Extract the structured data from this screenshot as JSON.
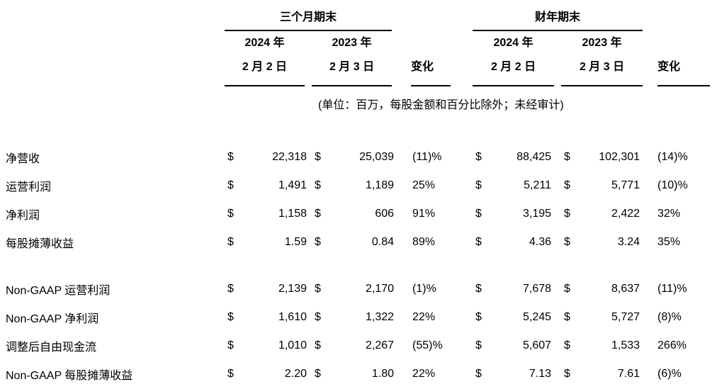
{
  "colors": {
    "background": "#ffffff",
    "text": "#000000",
    "rule": "#000000"
  },
  "table": {
    "currency_symbol": "$",
    "group_headers": [
      {
        "label": "三个月期末"
      },
      {
        "label": "财年期末"
      }
    ],
    "col_headers": {
      "q_2024_year": "2024 年",
      "q_2024_date": "2 月 2 日",
      "q_2023_year": "2023 年",
      "q_2023_date": "2 月 3 日",
      "fy_2024_year": "2024 年",
      "fy_2024_date": "2 月 2 日",
      "fy_2023_year": "2023 年",
      "fy_2023_date": "2 月 3 日",
      "change": "变化"
    },
    "note": "(单位：百万，每股金额和百分比除外；未经审计)",
    "rows": [
      {
        "section": 1,
        "label": "净营收",
        "q1": "22,318",
        "q2": "25,039",
        "qchg": "(11)%",
        "f1": "88,425",
        "f2": "102,301",
        "fchg": "(14)%"
      },
      {
        "section": 1,
        "label": "运营利润",
        "q1": "1,491",
        "q2": "1,189",
        "qchg": "25%",
        "f1": "5,211",
        "f2": "5,771",
        "fchg": "(10)%"
      },
      {
        "section": 1,
        "label": "净利润",
        "q1": "1,158",
        "q2": "606",
        "qchg": "91%",
        "f1": "3,195",
        "f2": "2,422",
        "fchg": "32%"
      },
      {
        "section": 1,
        "label": "每股摊薄收益",
        "q1": "1.59",
        "q2": "0.84",
        "qchg": "89%",
        "f1": "4.36",
        "f2": "3.24",
        "fchg": "35%"
      },
      {
        "section": 2,
        "label": "Non-GAAP 运营利润",
        "q1": "2,139",
        "q2": "2,170",
        "qchg": "(1)%",
        "f1": "7,678",
        "f2": "8,637",
        "fchg": "(11)%"
      },
      {
        "section": 2,
        "label": "Non-GAAP 净利润",
        "q1": "1,610",
        "q2": "1,322",
        "qchg": "22%",
        "f1": "5,245",
        "f2": "5,727",
        "fchg": "(8)%"
      },
      {
        "section": 2,
        "label": "调整后自由现金流",
        "q1": "1,010",
        "q2": "2,267",
        "qchg": "(55)%",
        "f1": "5,607",
        "f2": "1,533",
        "fchg": "266%"
      },
      {
        "section": 2,
        "label": "Non-GAAP 每股摊薄收益",
        "q1": "2.20",
        "q2": "1.80",
        "qchg": "22%",
        "f1": "7.13",
        "f2": "7.61",
        "fchg": "(6)%"
      }
    ]
  }
}
